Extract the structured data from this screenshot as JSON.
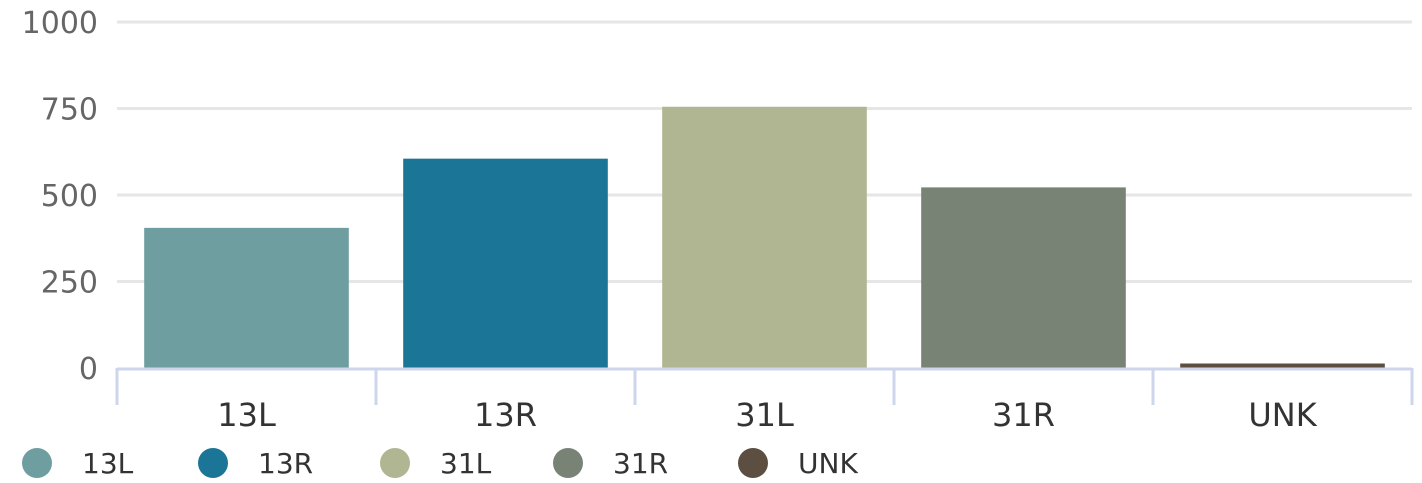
{
  "chart_data": {
    "type": "bar",
    "categories": [
      "13L",
      "13R",
      "31L",
      "31R",
      "UNK"
    ],
    "values": [
      405,
      605,
      755,
      522,
      13
    ],
    "colors": [
      "#6f9ea0",
      "#1b7597",
      "#b0b692",
      "#788375",
      "#5c4f41"
    ],
    "ylim": [
      0,
      1000
    ],
    "yticks": [
      0,
      250,
      500,
      750,
      1000
    ],
    "grid": true,
    "axis_color": "#cdd6eb",
    "grid_color": "#e6e6e6",
    "legend": {
      "position": "bottom-left",
      "items": [
        {
          "label": "13L",
          "color": "#6f9ea0"
        },
        {
          "label": "13R",
          "color": "#1b7597"
        },
        {
          "label": "31L",
          "color": "#b0b692"
        },
        {
          "label": "31R",
          "color": "#788375"
        },
        {
          "label": "UNK",
          "color": "#5c4f41"
        }
      ]
    }
  }
}
